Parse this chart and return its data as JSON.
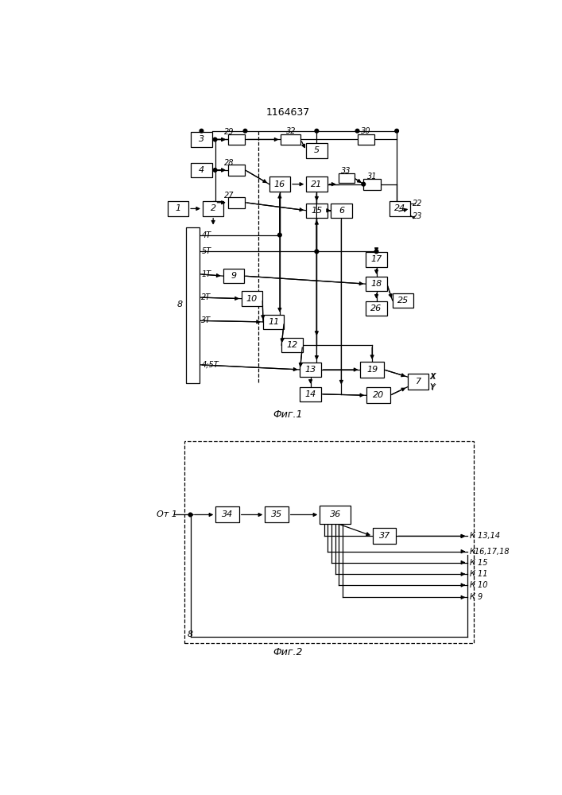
{
  "title": "1164637",
  "fig1_label": "Фиг.1",
  "fig2_label": "Фиг.2",
  "bg": "#ffffff",
  "lc": "#000000"
}
